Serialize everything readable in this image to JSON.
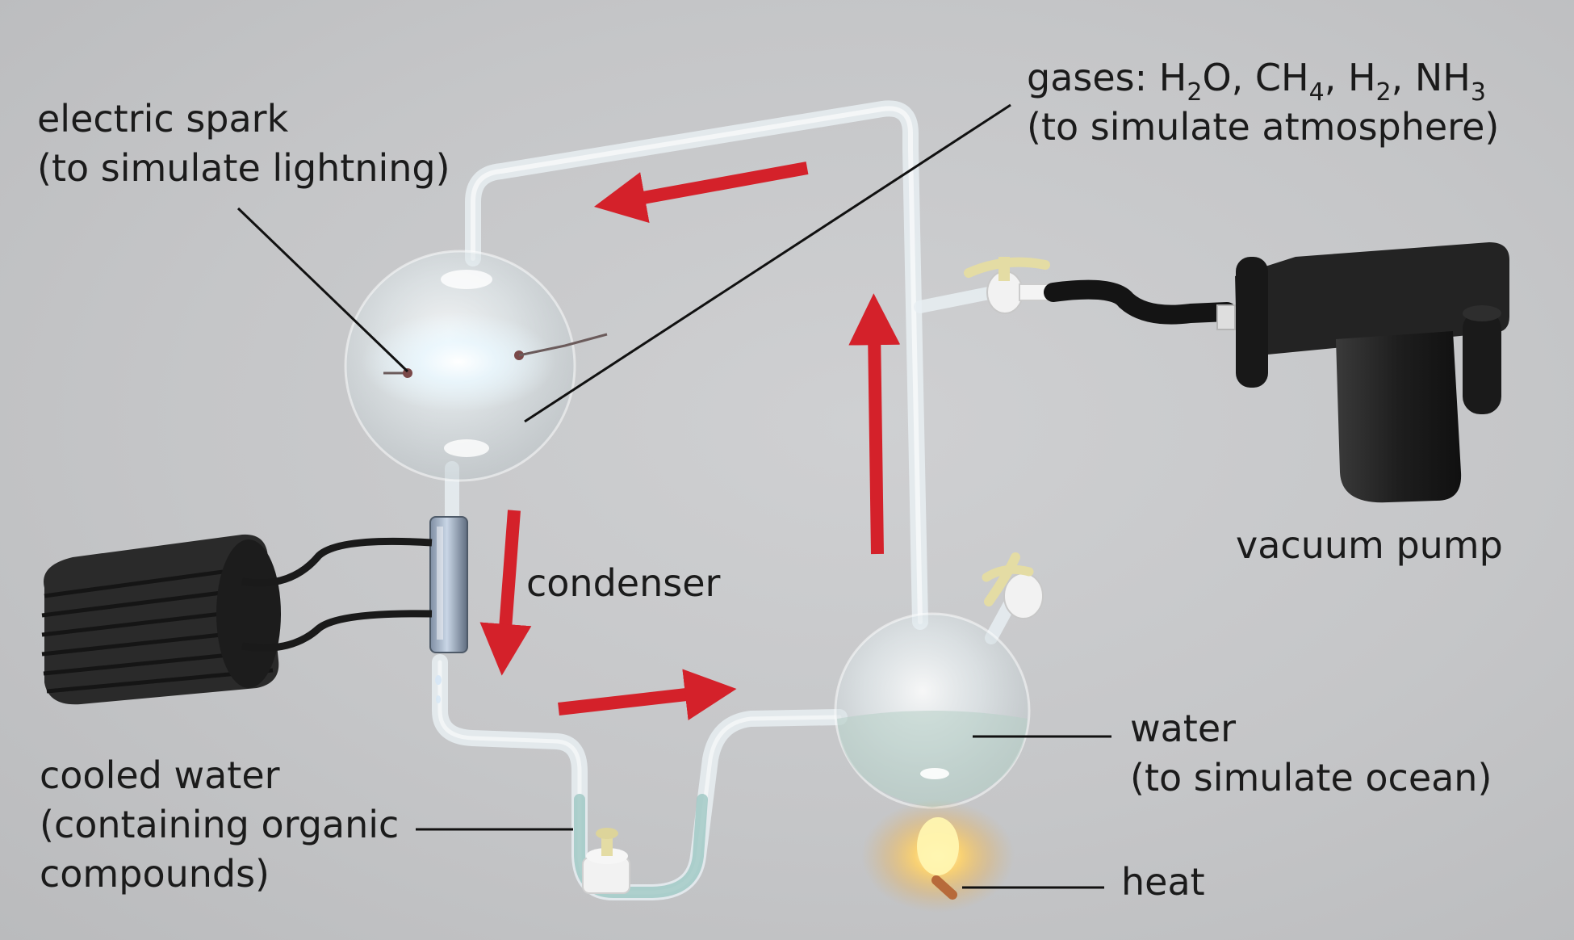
{
  "labels": {
    "electric_spark": {
      "line1": "electric spark",
      "line2": "(to simulate lightning)"
    },
    "gases": {
      "prefix": "gases: ",
      "formulas": [
        {
          "base": "H",
          "sub": "2",
          "tail": "O, "
        },
        {
          "base": "CH",
          "sub": "4",
          "tail": ", "
        },
        {
          "base": "H",
          "sub": "2",
          "tail": ", "
        },
        {
          "base": "NH",
          "sub": "3",
          "tail": ""
        }
      ],
      "line2": "(to simulate atmosphere)"
    },
    "condenser": "condenser",
    "vacuum_pump": "vacuum pump",
    "water": {
      "line1": "water",
      "line2": "(to simulate ocean)"
    },
    "cooled_water": {
      "line1": "cooled water",
      "line2": "(containing organic",
      "line3": "compounds)"
    },
    "heat": "heat"
  },
  "colors": {
    "background": "#c6c7c9",
    "arrow": "#d4212a",
    "text": "#1b1b1b",
    "glass": "#e4eef2",
    "device": "#222222",
    "valve_handle": "#e4dca4"
  }
}
